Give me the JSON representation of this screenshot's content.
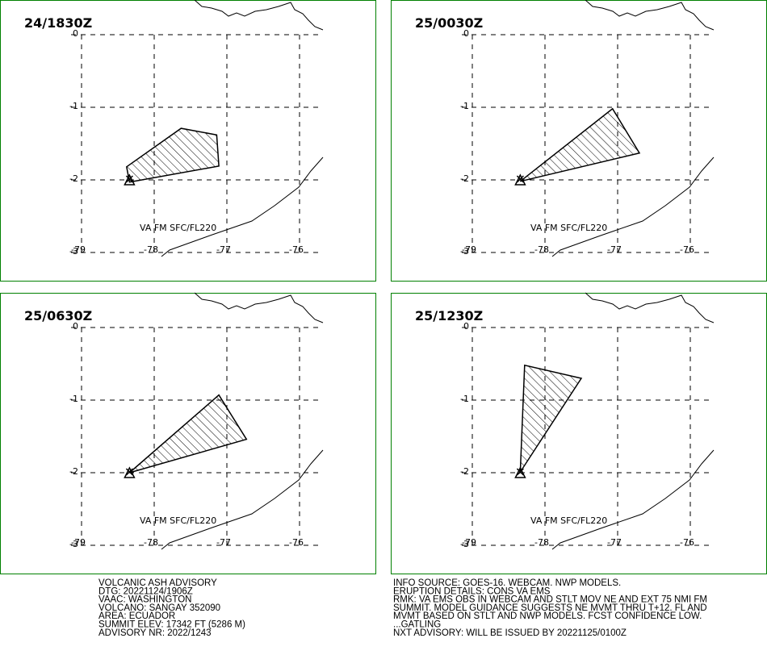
{
  "panels": [
    {
      "time": "24/1830Z",
      "label": "VA FM SFC/FL220",
      "polygon": {
        "lon": [
          -78.38,
          -77.63,
          -77.14,
          -77.11,
          -78.34
        ],
        "lat": [
          -1.82,
          -1.29,
          -1.38,
          -1.81,
          -2.03
        ]
      }
    },
    {
      "time": "25/0030Z",
      "label": "VA FM SFC/FL220",
      "polygon": {
        "lon": [
          -78.34,
          -77.07,
          -76.7
        ],
        "lat": [
          -2.02,
          -1.02,
          -1.63
        ]
      }
    },
    {
      "time": "25/0630Z",
      "label": "VA FM SFC/FL220",
      "polygon": {
        "lon": [
          -78.34,
          -77.11,
          -76.73
        ],
        "lat": [
          -2.0,
          -0.93,
          -1.54
        ]
      }
    },
    {
      "time": "25/1230Z",
      "label": "VA FM SFC/FL220",
      "polygon": {
        "lon": [
          -78.34,
          -78.28,
          -77.5
        ],
        "lat": [
          -1.99,
          -0.52,
          -0.7
        ]
      }
    }
  ],
  "volcano": {
    "lon": -78.34,
    "lat": -2.0
  },
  "lon_ticks": [
    -79,
    -78,
    -77,
    -76
  ],
  "lat_ticks": [
    0,
    -1,
    -2,
    -3
  ],
  "text_left": [
    "VOLCANIC ASH ADVISORY",
    "DTG: 20221124/1906Z",
    "VAAC: WASHINGTON",
    "VOLCANO: SANGAY 352090",
    "AREA: ECUADOR",
    "SUMMIT ELEV: 17342 FT (5286 M)",
    "ADVISORY NR: 2022/1243"
  ],
  "text_right": [
    "INFO SOURCE: GOES-16. WEBCAM. NWP MODELS.",
    "ERUPTION DETAILS: CONS VA EMS",
    "RMK: VA EMS OBS IN WEBCAM AND STLT MOV NE AND EXT 75 NMI FM",
    "SUMMIT. MODEL GUIDANCE SUGGESTS NE MVMT THRU T+12. FL AND",
    "MVMT BASED ON STLT AND NWP MODELS. FCST CONFIDENCE LOW.",
    "...GATLING",
    "NXT ADVISORY: WILL BE ISSUED BY 20221125/0100Z"
  ]
}
